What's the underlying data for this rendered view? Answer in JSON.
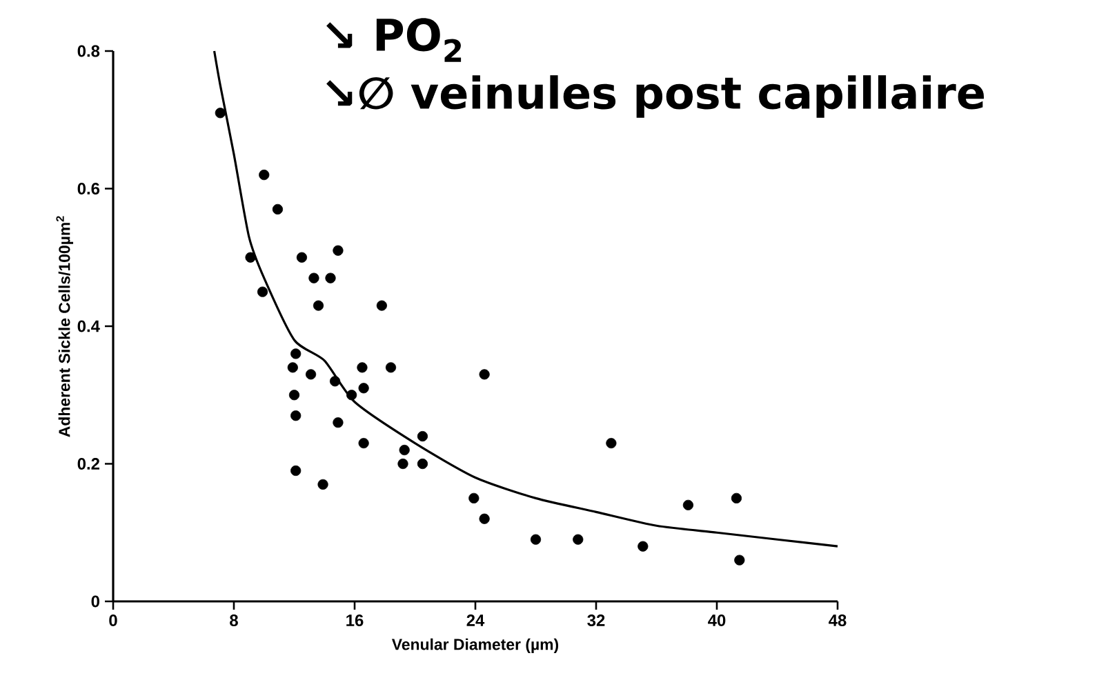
{
  "chart_data": {
    "type": "scatter",
    "xlabel": "Venular Diameter (µm)",
    "ylabel": "Adherent Sickle Cells/100µm$^{2}$",
    "annotations": [
      "↘ PO$_{2}$",
      "↘∅ veinules post capillaire"
    ],
    "xlim": [
      0,
      48
    ],
    "ylim": [
      0,
      0.8
    ],
    "xticks": [
      0,
      8,
      16,
      24,
      32,
      40,
      48
    ],
    "yticks": [
      0,
      0.2,
      0.4,
      0.6,
      0.8
    ],
    "grid": false,
    "series": [
      {
        "marker": "circle",
        "color": "#000000",
        "x": [
          7.1,
          10.0,
          10.9,
          9.1,
          9.9,
          12.5,
          14.9,
          13.3,
          14.4,
          13.6,
          17.8,
          12.1,
          11.9,
          13.1,
          16.5,
          18.4,
          14.7,
          16.6,
          15.8,
          12.0,
          12.1,
          14.9,
          16.6,
          19.3,
          20.5,
          19.2,
          20.5,
          12.1,
          13.9,
          24.6,
          23.9,
          24.6,
          28.0,
          33.0,
          30.8,
          35.1,
          38.1,
          41.3,
          41.5
        ],
        "values": [
          0.71,
          0.62,
          0.57,
          0.5,
          0.45,
          0.5,
          0.51,
          0.47,
          0.47,
          0.43,
          0.43,
          0.36,
          0.34,
          0.33,
          0.34,
          0.34,
          0.32,
          0.31,
          0.3,
          0.3,
          0.27,
          0.26,
          0.23,
          0.22,
          0.24,
          0.2,
          0.2,
          0.19,
          0.17,
          0.33,
          0.15,
          0.12,
          0.09,
          0.23,
          0.09,
          0.08,
          0.14,
          0.15,
          0.06
        ]
      },
      {
        "type": "line",
        "marker": "none",
        "line_style": "solid",
        "color": "#000000",
        "x": [
          6.7,
          7.1,
          8,
          9,
          10,
          12,
          14,
          16,
          20,
          24,
          28,
          32,
          36,
          40,
          44,
          48
        ],
        "values": [
          0.8,
          0.75,
          0.65,
          0.53,
          0.47,
          0.38,
          0.35,
          0.29,
          0.23,
          0.18,
          0.15,
          0.13,
          0.11,
          0.1,
          0.09,
          0.08
        ]
      }
    ]
  }
}
